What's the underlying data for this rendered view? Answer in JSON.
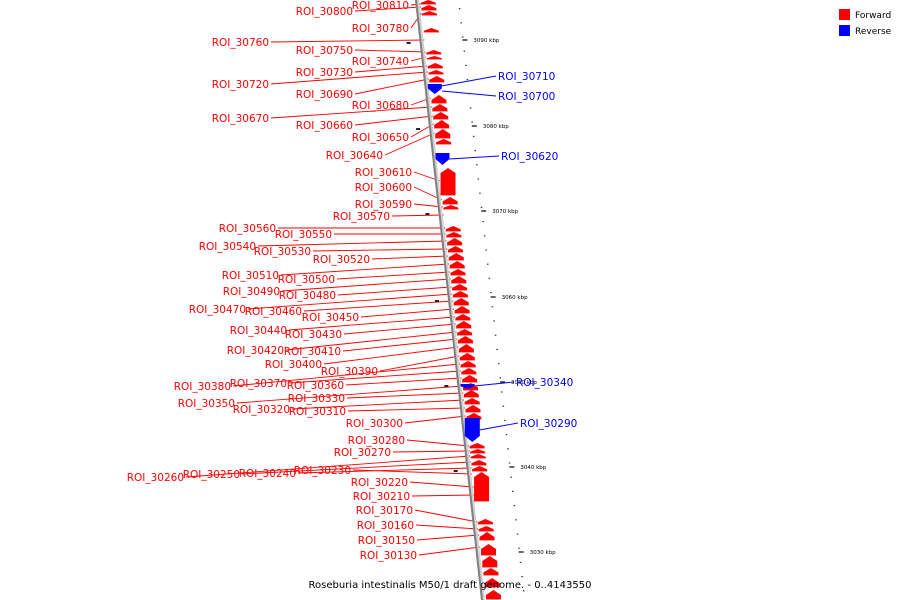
{
  "title": "Roseburia intestinalis M50/1 draft genome. - 0..4143550",
  "legend": [
    {
      "label": "Forward",
      "color": "#ff0000"
    },
    {
      "label": "Reverse",
      "color": "#0000ff"
    }
  ],
  "colors": {
    "forward": "#ff0000",
    "reverse": "#0000ff",
    "axis": "#808080"
  },
  "ticks": [
    {
      "label": "3090 kbp"
    },
    {
      "label": "3080 kbp"
    },
    {
      "label": "3070 kbp"
    },
    {
      "label": "3060 kbp"
    },
    {
      "label": "3050 kbp"
    },
    {
      "label": "3040 kbp"
    },
    {
      "label": "3030 kbp"
    }
  ],
  "forward_genes": [
    "ROI_30810",
    "ROI_30800",
    "ROI_30780",
    "ROI_30760",
    "ROI_30750",
    "ROI_30740",
    "ROI_30730",
    "ROI_30720",
    "ROI_30690",
    "ROI_30680",
    "ROI_30670",
    "ROI_30660",
    "ROI_30650",
    "ROI_30640",
    "ROI_30610",
    "ROI_30600",
    "ROI_30590",
    "ROI_30570",
    "ROI_30560",
    "ROI_30550",
    "ROI_30540",
    "ROI_30530",
    "ROI_30520",
    "ROI_30510",
    "ROI_30500",
    "ROI_30490",
    "ROI_30480",
    "ROI_30470",
    "ROI_30460",
    "ROI_30450",
    "ROI_30440",
    "ROI_30430",
    "ROI_30420",
    "ROI_30410",
    "ROI_30400",
    "ROI_30390",
    "ROI_30380",
    "ROI_30370",
    "ROI_30360",
    "ROI_30350",
    "ROI_30330",
    "ROI_30320",
    "ROI_30310",
    "ROI_30300",
    "ROI_30280",
    "ROI_30270",
    "ROI_30260",
    "ROI_30250",
    "ROI_30240",
    "ROI_30230",
    "ROI_30220",
    "ROI_30210",
    "ROI_30170",
    "ROI_30160",
    "ROI_30150",
    "ROI_30130"
  ],
  "reverse_genes": [
    "ROI_30710",
    "ROI_30700",
    "ROI_30620",
    "ROI_30340",
    "ROI_30290"
  ]
}
